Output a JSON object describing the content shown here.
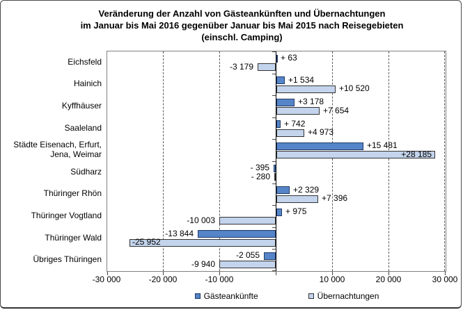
{
  "title": {
    "line1": "Veränderung der Anzahl von Gästeankünften und Übernachtungen",
    "line2": "im Januar bis Mai 2016 gegenüber Januar bis Mai 2015 nach Reisegebieten",
    "line3": "(einschl. Camping)"
  },
  "axis": {
    "ticks": [
      {
        "label": "-30 000",
        "value": -30000
      },
      {
        "label": "-20 000",
        "value": -20000
      },
      {
        "label": "-10 000",
        "value": -10000
      },
      {
        "label": "10 000",
        "value": 10000
      },
      {
        "label": "20 000",
        "value": 20000
      },
      {
        "label": "30 000",
        "value": 30000
      }
    ],
    "min": -30000,
    "max": 30000,
    "step": 10000
  },
  "chart_data": {
    "type": "bar",
    "orientation": "horizontal",
    "title": "Veränderung der Anzahl von Gästeankünften und Übernachtungen im Januar bis Mai 2016 gegenüber Januar bis Mai 2015 nach Reisegebieten (einschl. Camping)",
    "categories": [
      "Eichsfeld",
      "Hainich",
      "Kyffhäuser",
      "Saaleland",
      "Städte Eisenach, Erfurt,\nJena, Weimar",
      "Südharz",
      "Thüringer Rhön",
      "Thüringer Vogtland",
      "Thüringer Wald",
      "Übriges Thüringen"
    ],
    "series": [
      {
        "name": "Gästeankünfte",
        "color": "#5585C8",
        "border_color": "#1F3864",
        "values": [
          63,
          1534,
          3178,
          742,
          15481,
          -395,
          2329,
          975,
          -13844,
          -2055
        ],
        "value_labels": [
          "+ 63",
          "+1 534",
          "+3 178",
          "+ 742",
          "+15 481",
          "- 395",
          "+2 329",
          "+ 975",
          "-13 844",
          "-2 055"
        ]
      },
      {
        "name": "Übernachtungen",
        "color": "#C3D4EC",
        "border_color": "#333333",
        "values": [
          -3179,
          10520,
          7654,
          4973,
          28185,
          -280,
          7396,
          -10003,
          -25952,
          -9940
        ],
        "value_labels": [
          "-3 179",
          "+10 520",
          "+7 654",
          "+4 973",
          "+28 185",
          "- 280",
          "+7 396",
          "-10 003",
          "-25 952",
          "-9 940"
        ]
      }
    ],
    "xlim": [
      -30000,
      30000
    ],
    "grid": "vertical-dashed",
    "legend_position": "bottom"
  }
}
